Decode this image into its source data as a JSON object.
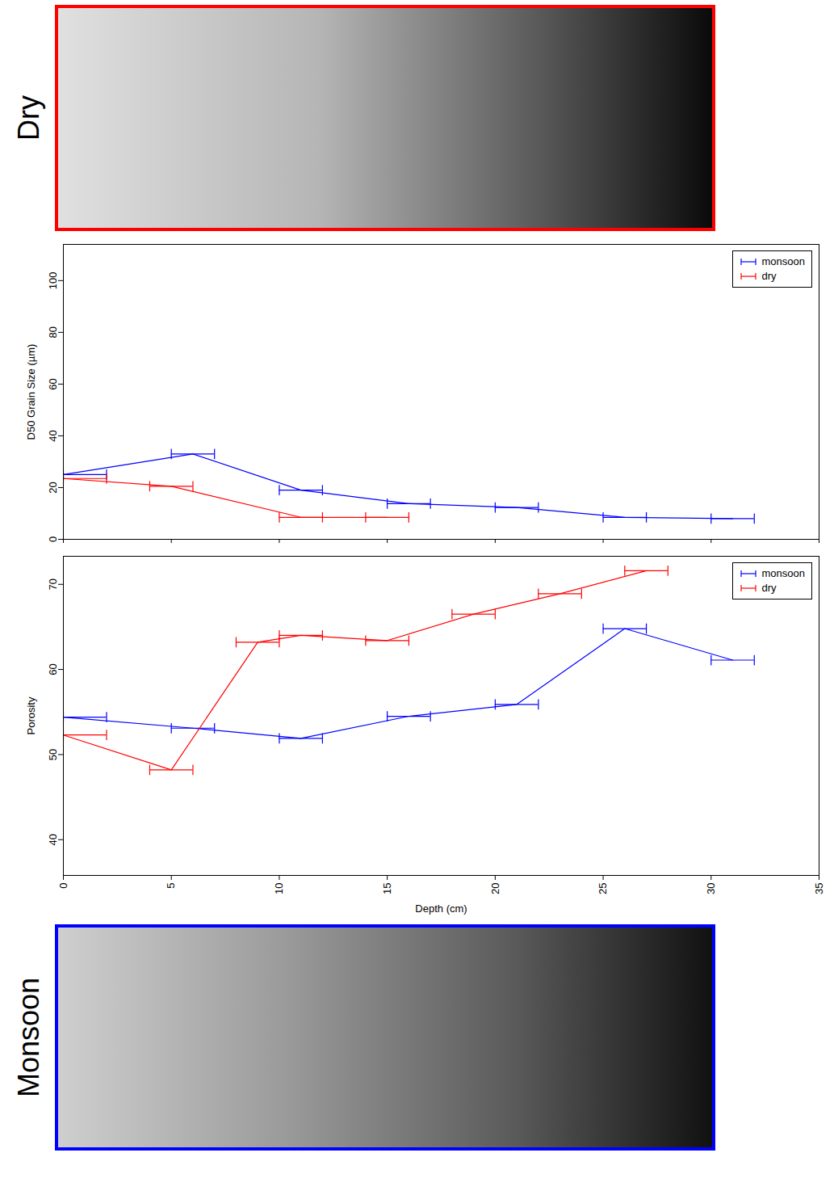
{
  "panels": [
    {
      "label": "Dry",
      "color": "#ff0000"
    },
    {
      "label": "Monsoon",
      "color": "#0000ff"
    }
  ],
  "chart_data": [
    {
      "type": "line",
      "y_label": "D50 Grain Size (µm)",
      "xlim": [
        0,
        35
      ],
      "xticks": [
        0,
        5,
        10,
        15,
        20,
        25,
        30,
        35
      ],
      "ylim": [
        0,
        114
      ],
      "yticks": [
        0,
        20,
        40,
        60,
        80,
        100
      ],
      "tick_labels": "y",
      "legend": "top-right",
      "series": [
        {
          "name": "monsoon",
          "color": "#0000ff",
          "x": [
            0,
            6,
            11,
            16,
            21,
            26,
            31
          ],
          "values": [
            25,
            33,
            19,
            13.8,
            12.3,
            8.5,
            8
          ],
          "depth_min": [
            0,
            5,
            10,
            15,
            20,
            25,
            30
          ],
          "depth_max": [
            2,
            7,
            12,
            17,
            22,
            27,
            32
          ]
        },
        {
          "name": "dry",
          "color": "#ff0000",
          "x": [
            0,
            5,
            11,
            15
          ],
          "values": [
            23.5,
            20.5,
            8.5,
            8.5
          ],
          "depth_min": [
            0,
            4,
            10,
            14
          ],
          "depth_max": [
            2,
            6,
            12,
            16
          ]
        }
      ]
    },
    {
      "type": "line",
      "x_label": "Depth (cm)",
      "y_label": "Porosity",
      "xlim": [
        0,
        35
      ],
      "xticks": [
        0,
        5,
        10,
        15,
        20,
        25,
        30,
        35
      ],
      "ylim": [
        35.8,
        73.3
      ],
      "yticks": [
        40,
        50,
        60,
        70
      ],
      "legend": "top-right",
      "series": [
        {
          "name": "monsoon",
          "color": "#0000ff",
          "x": [
            0,
            6,
            11,
            16,
            21,
            26,
            31
          ],
          "values": [
            54.4,
            53.1,
            51.9,
            54.5,
            55.9,
            64.8,
            61.1
          ],
          "depth_min": [
            0,
            5,
            10,
            15,
            20,
            25,
            30
          ],
          "depth_max": [
            2,
            7,
            12,
            17,
            22,
            27,
            32
          ]
        },
        {
          "name": "dry",
          "color": "#ff0000",
          "x": [
            0,
            5,
            9,
            11,
            15,
            19,
            23,
            27
          ],
          "values": [
            52.3,
            48.2,
            63.2,
            64,
            63.4,
            66.5,
            68.9,
            71.6
          ],
          "depth_min": [
            0,
            4,
            8,
            10,
            14,
            18,
            22,
            26
          ],
          "depth_max": [
            2,
            6,
            10,
            12,
            16,
            20,
            24,
            28
          ]
        }
      ]
    }
  ]
}
